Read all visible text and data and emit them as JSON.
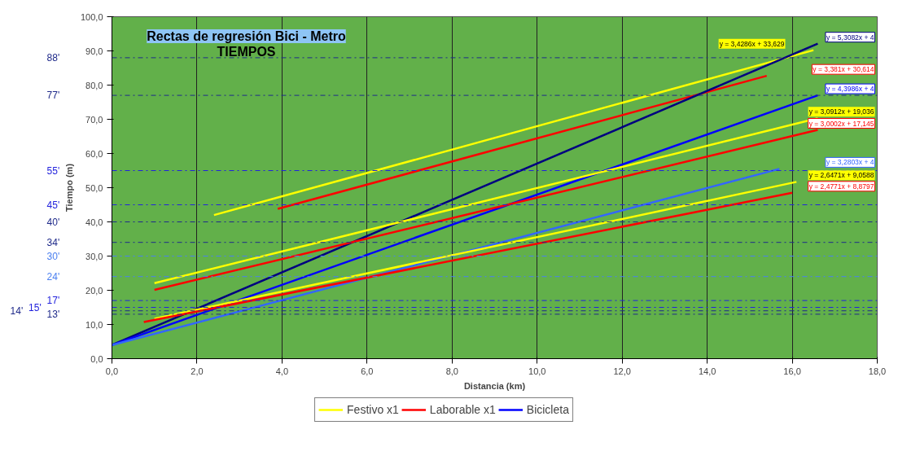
{
  "chart_data": {
    "type": "line",
    "title": "Rectas de regresión Bici - Metro\nTIEMPOS",
    "xlabel": "Distancia (km)",
    "ylabel": "Tiempo (m)",
    "xlim": [
      0,
      18
    ],
    "ylim": [
      0,
      100
    ],
    "xticks": [
      {
        "value": 0,
        "label": "0,0"
      },
      {
        "value": 2,
        "label": "2,0"
      },
      {
        "value": 4,
        "label": "4,0"
      },
      {
        "value": 6,
        "label": "6,0"
      },
      {
        "value": 8,
        "label": "8,0"
      },
      {
        "value": 10,
        "label": "10,0"
      },
      {
        "value": 12,
        "label": "12,0"
      },
      {
        "value": 14,
        "label": "14,0"
      },
      {
        "value": 16,
        "label": "16,0"
      },
      {
        "value": 18,
        "label": "18,0"
      }
    ],
    "yticks": [
      {
        "value": 0,
        "label": "0,0"
      },
      {
        "value": 10,
        "label": "10,0"
      },
      {
        "value": 20,
        "label": "20,0"
      },
      {
        "value": 30,
        "label": "30,0"
      },
      {
        "value": 40,
        "label": "40,0"
      },
      {
        "value": 50,
        "label": "50,0"
      },
      {
        "value": 60,
        "label": "60,0"
      },
      {
        "value": 70,
        "label": "70,0"
      },
      {
        "value": 80,
        "label": "80,0"
      },
      {
        "value": 90,
        "label": "90,0"
      },
      {
        "value": 100,
        "label": "100,0"
      }
    ],
    "grid": "x",
    "legend": "bottom",
    "line_style": "solid",
    "series": [
      {
        "name": "Festivo x1",
        "color": "#ffff00",
        "x": [
          2.4,
          16.5
        ],
        "values": [
          42.0,
          90.2
        ]
      },
      {
        "name": "Laborable x1",
        "color": "#ff0000",
        "x": [
          3.9,
          15.4
        ],
        "values": [
          43.8,
          82.7
        ]
      },
      {
        "color": "#000080",
        "x": [
          0,
          16.6
        ],
        "values": [
          4,
          92.1
        ]
      },
      {
        "name": "Bicicleta",
        "color": "#0000ff",
        "x": [
          0,
          16.6
        ],
        "values": [
          4,
          77.0
        ]
      },
      {
        "color": "#ffff00",
        "x": [
          1,
          16.6
        ],
        "values": [
          22.1,
          70.3
        ]
      },
      {
        "color": "#ff0000",
        "x": [
          1,
          16.6
        ],
        "values": [
          20.1,
          66.9
        ]
      },
      {
        "color": "#3366ff",
        "x": [
          0,
          15.7
        ],
        "values": [
          4,
          55.5
        ]
      },
      {
        "color": "#ffff00",
        "x": [
          1,
          16.1
        ],
        "values": [
          11.7,
          51.7
        ]
      },
      {
        "color": "#ff0000",
        "x": [
          0.75,
          16.0
        ],
        "values": [
          10.7,
          48.5
        ]
      }
    ],
    "annotations": [
      "y = 3,4286x + 33,629",
      "y = 3,381x + 30,614",
      "y = 5,3082x + 4",
      "y = 4,3986x + 4",
      "y = 3,0912x + 19,036",
      "y = 3,0002x + 17,145",
      "y = 3,2803x + 4",
      "y = 2,6471x + 9,0588",
      "y = 2,4771x + 8,8797"
    ],
    "ref_lines": [
      {
        "axis": "y",
        "value": 88,
        "label": "88'",
        "color": "#1f2a8a",
        "line_style": "dashdot"
      },
      {
        "axis": "y",
        "value": 77,
        "label": "77'",
        "color": "#1f2a8a",
        "line_style": "dashdot"
      },
      {
        "axis": "y",
        "value": 55,
        "label": "55'",
        "color": "#2222dd",
        "line_style": "dashdot"
      },
      {
        "axis": "y",
        "value": 45,
        "label": "45'",
        "color": "#2222dd",
        "line_style": "dashdot"
      },
      {
        "axis": "y",
        "value": 40,
        "label": "40'",
        "color": "#1f2a8a",
        "line_style": "dashdot"
      },
      {
        "axis": "y",
        "value": 34,
        "label": "34'",
        "color": "#1f2a8a",
        "line_style": "dashdot"
      },
      {
        "axis": "y",
        "value": 30,
        "label": "30'",
        "color": "#4a7ff0",
        "line_style": "dashdot"
      },
      {
        "axis": "y",
        "value": 24,
        "label": "24'",
        "color": "#4a7ff0",
        "line_style": "dashdot"
      },
      {
        "axis": "y",
        "value": 17,
        "label": "17'",
        "color": "#2222dd",
        "line_style": "dashdot"
      },
      {
        "axis": "y",
        "value": 15,
        "label": "15'",
        "color": "#2222dd",
        "line_style": "dashdot"
      },
      {
        "axis": "y",
        "value": 14,
        "label": "14'",
        "color": "#1f2a8a",
        "line_style": "dashdot"
      },
      {
        "axis": "y",
        "value": 13,
        "label": "13'",
        "color": "#1f2a8a",
        "line_style": "dashdot"
      }
    ]
  }
}
